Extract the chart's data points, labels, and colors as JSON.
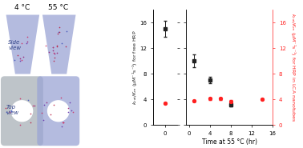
{
  "black_x": [
    1,
    4,
    8
  ],
  "black_y": [
    10.0,
    7.0,
    3.2
  ],
  "black_yerr": [
    1.0,
    0.5,
    0.3
  ],
  "red_x": [
    1,
    4,
    6,
    8,
    14
  ],
  "red_y": [
    3.8,
    4.1,
    4.1,
    3.7,
    4.0
  ],
  "red_yerr": [
    0.15,
    0.15,
    0.15,
    0.15,
    0.15
  ],
  "black_t0_y": [
    15.0
  ],
  "black_t0_yerr": [
    1.3
  ],
  "red_t0_y": [
    3.4
  ],
  "red_t0_yerr": [
    0.12
  ],
  "xlim_main": [
    -0.5,
    16
  ],
  "xticks_main": [
    0,
    4,
    8,
    12,
    16
  ],
  "xlim_t0": [
    -0.8,
    0.8
  ],
  "xticks_t0": [
    0
  ],
  "ylim": [
    0,
    18
  ],
  "yticks": [
    0,
    4,
    8,
    12,
    16
  ],
  "xlabel": "Time at 55 °C (hr)",
  "ylabel_left": "$k_{cat}/K_m$ (μM⁻¹s⁻¹) for free HRP",
  "ylabel_right": "$k_{cat}/K_m$ (μM⁻¹s⁻¹) for HRP in LCA nanotubes",
  "black_color": "#222222",
  "red_color": "#ff2020",
  "title_4": "4 °C",
  "title_55": "55 °C",
  "label_side": "Side\nview",
  "label_top": "Top\nview",
  "blue_panel": "#9ba5d5",
  "gray_panel": "#a8b0b8",
  "dot_colors": [
    "#6633aa",
    "#cc3366",
    "#4455bb",
    "#992277",
    "#bb2244"
  ]
}
